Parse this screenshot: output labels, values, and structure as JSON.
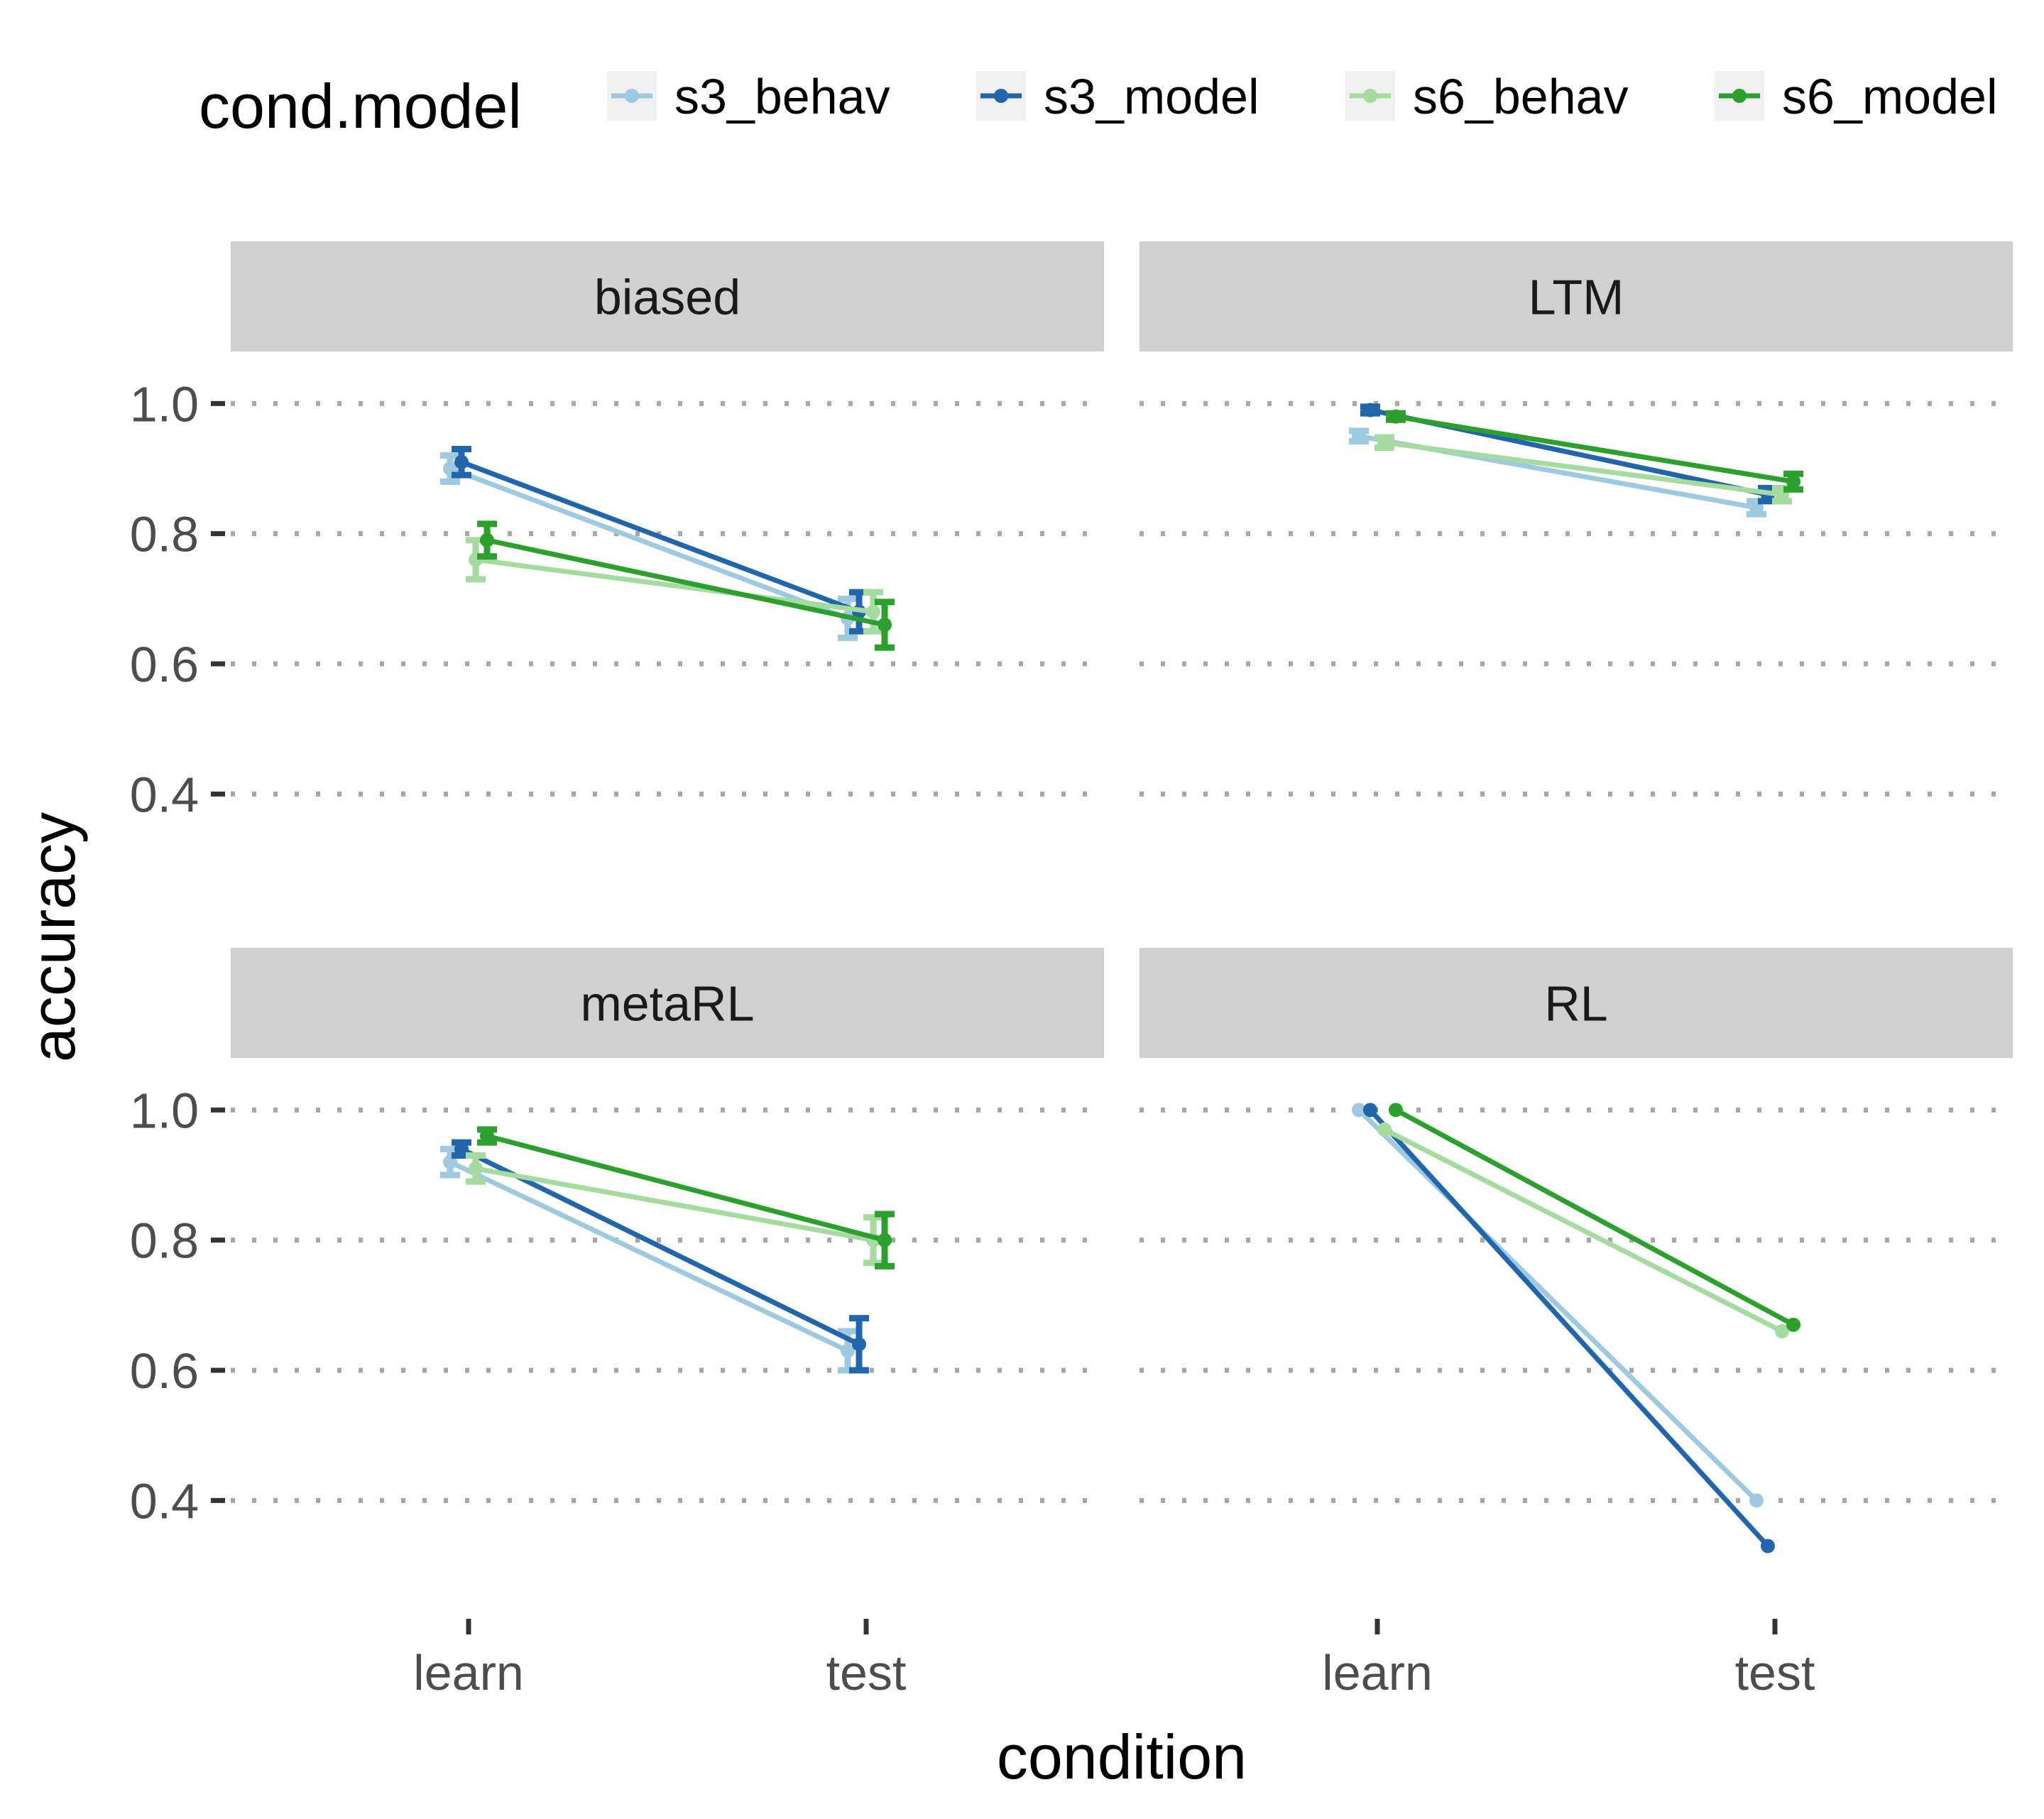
{
  "chart_data": {
    "type": "line",
    "facet_layout": "2x2",
    "legend": {
      "title": "cond.model",
      "position": "top",
      "entries": [
        "s3_behav",
        "s3_model",
        "s6_behav",
        "s6_model"
      ]
    },
    "xlabel": "condition",
    "ylabel": "accuracy",
    "categories": [
      "learn",
      "test"
    ],
    "ylim": [
      0.3,
      1.08
    ],
    "yticks": [
      "0.4",
      "0.6",
      "0.8",
      "1.0"
    ],
    "grid": "horizontal-dotted",
    "colors": {
      "s3_behav": "#9ecae1",
      "s3_model": "#2166ac",
      "s6_behav": "#a6dba0",
      "s6_model": "#2ca02c"
    },
    "panels": [
      {
        "title": "biased",
        "series": [
          {
            "name": "s3_behav",
            "values": [
              0.9,
              0.67
            ],
            "error": [
              0.02,
              0.03
            ]
          },
          {
            "name": "s3_model",
            "values": [
              0.91,
              0.68
            ],
            "error": [
              0.02,
              0.03
            ]
          },
          {
            "name": "s6_behav",
            "values": [
              0.76,
              0.68
            ],
            "error": [
              0.03,
              0.03
            ]
          },
          {
            "name": "s6_model",
            "values": [
              0.79,
              0.66
            ],
            "error": [
              0.025,
              0.035
            ]
          }
        ]
      },
      {
        "title": "LTM",
        "series": [
          {
            "name": "s3_behav",
            "values": [
              0.95,
              0.84
            ],
            "error": [
              0.008,
              0.01
            ]
          },
          {
            "name": "s3_model",
            "values": [
              0.99,
              0.86
            ],
            "error": [
              0.005,
              0.01
            ]
          },
          {
            "name": "s6_behav",
            "values": [
              0.94,
              0.86
            ],
            "error": [
              0.008,
              0.01
            ]
          },
          {
            "name": "s6_model",
            "values": [
              0.98,
              0.88
            ],
            "error": [
              0.005,
              0.012
            ]
          }
        ]
      },
      {
        "title": "metaRL",
        "series": [
          {
            "name": "s3_behav",
            "values": [
              0.92,
              0.63
            ],
            "error": [
              0.02,
              0.03
            ]
          },
          {
            "name": "s3_model",
            "values": [
              0.94,
              0.64
            ],
            "error": [
              0.01,
              0.04
            ]
          },
          {
            "name": "s6_behav",
            "values": [
              0.91,
              0.8
            ],
            "error": [
              0.02,
              0.035
            ]
          },
          {
            "name": "s6_model",
            "values": [
              0.96,
              0.8
            ],
            "error": [
              0.01,
              0.04
            ]
          }
        ]
      },
      {
        "title": "RL",
        "series": [
          {
            "name": "s3_behav",
            "values": [
              1.0,
              0.4
            ],
            "error": [
              0,
              0
            ]
          },
          {
            "name": "s3_model",
            "values": [
              1.0,
              0.33
            ],
            "error": [
              0,
              0
            ]
          },
          {
            "name": "s6_behav",
            "values": [
              0.97,
              0.66
            ],
            "error": [
              0,
              0
            ]
          },
          {
            "name": "s6_model",
            "values": [
              1.0,
              0.67
            ],
            "error": [
              0,
              0
            ]
          }
        ]
      }
    ]
  }
}
